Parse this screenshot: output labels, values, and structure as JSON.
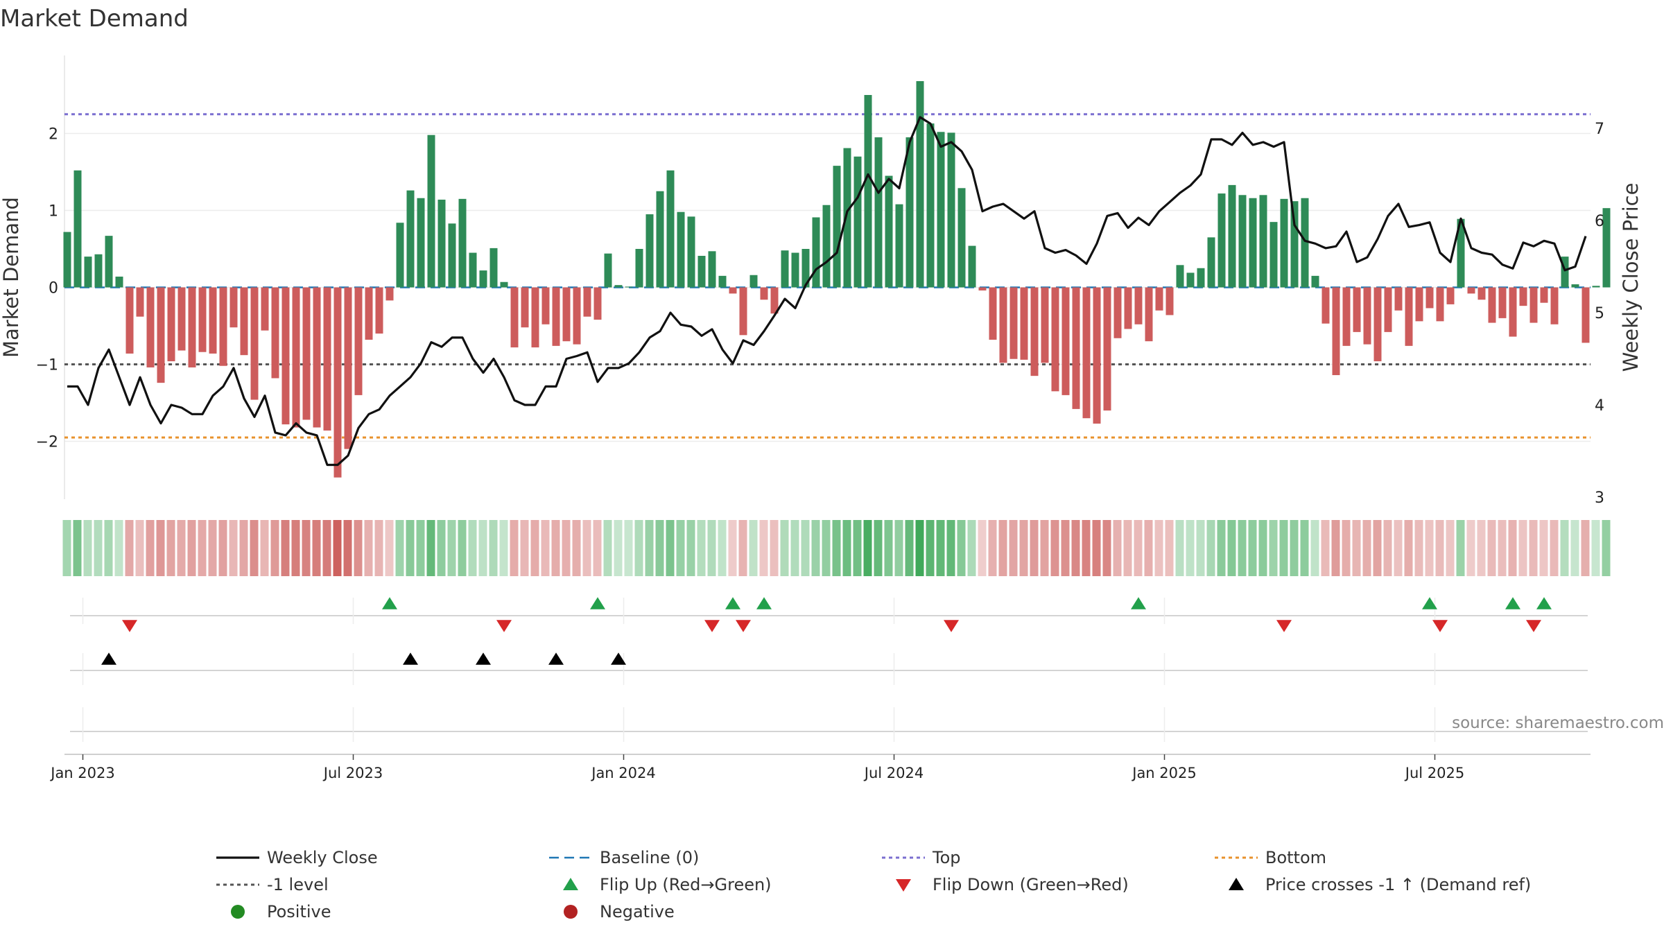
{
  "chart_data": {
    "type": "bar+line",
    "title": "Market Demand",
    "y_left_label": "Market Demand",
    "y_right_label": "Weekly Close Price",
    "y_left_range": [
      -2.7,
      3.0
    ],
    "y_right_range": [
      3.0,
      7.85
    ],
    "y_left_ticks": [
      -2,
      -1,
      0,
      1,
      2
    ],
    "y_right_ticks": [
      3,
      4,
      5,
      6,
      7
    ],
    "x_ticks": [
      {
        "label": "Jan 2023",
        "index": 1.5
      },
      {
        "label": "Jul 2023",
        "index": 27.5
      },
      {
        "label": "Jan 2024",
        "index": 53.5
      },
      {
        "label": "Jul 2024",
        "index": 79.5
      },
      {
        "label": "Jan 2025",
        "index": 105.5
      },
      {
        "label": "Jul 2025",
        "index": 131.5
      }
    ],
    "levels": {
      "top": 2.25,
      "minus_one": -1.0,
      "bottom": -1.95,
      "baseline": 0
    },
    "demand": [
      0.72,
      1.52,
      0.4,
      0.43,
      0.67,
      0.14,
      -0.86,
      -0.38,
      -1.04,
      -1.24,
      -0.96,
      -0.82,
      -1.04,
      -0.84,
      -0.86,
      -1.02,
      -0.52,
      -0.88,
      -1.46,
      -0.56,
      -1.18,
      -1.78,
      -1.82,
      -1.72,
      -1.82,
      -1.86,
      -2.47,
      -2.1,
      -1.4,
      -0.68,
      -0.6,
      -0.17,
      0.84,
      1.26,
      1.16,
      1.98,
      1.14,
      0.83,
      1.15,
      0.45,
      0.22,
      0.51,
      0.07,
      -0.78,
      -0.52,
      -0.78,
      -0.48,
      -0.76,
      -0.7,
      -0.74,
      -0.38,
      -0.42,
      0.44,
      0.03,
      0.01,
      0.5,
      0.95,
      1.25,
      1.52,
      0.98,
      0.92,
      0.41,
      0.47,
      0.15,
      -0.08,
      -0.62,
      0.16,
      -0.16,
      -0.34,
      0.48,
      0.45,
      0.5,
      0.91,
      1.07,
      1.58,
      1.81,
      1.7,
      2.5,
      1.95,
      1.45,
      1.08,
      1.95,
      2.68,
      2.13,
      2.02,
      2.01,
      1.29,
      0.54,
      -0.04,
      -0.68,
      -0.98,
      -0.93,
      -0.94,
      -1.15,
      -0.98,
      -1.35,
      -1.4,
      -1.58,
      -1.7,
      -1.77,
      -1.6,
      -0.66,
      -0.54,
      -0.48,
      -0.7,
      -0.3,
      -0.36,
      0.29,
      0.19,
      0.25,
      0.65,
      1.22,
      1.33,
      1.2,
      1.16,
      1.2,
      0.85,
      1.15,
      1.12,
      1.16,
      0.15,
      -0.47,
      -1.14,
      -0.76,
      -0.58,
      -0.74,
      -0.96,
      -0.58,
      -0.3,
      -0.76,
      -0.44,
      -0.27,
      -0.44,
      -0.22,
      0.89,
      -0.08,
      -0.16,
      -0.46,
      -0.4,
      -0.64,
      -0.24,
      -0.46,
      -0.2,
      -0.48,
      0.4,
      0.04,
      -0.72,
      0.02,
      1.03
    ],
    "close": [
      4.2,
      4.2,
      4.0,
      4.4,
      4.6,
      4.3,
      4.0,
      4.3,
      4.0,
      3.8,
      4.0,
      3.97,
      3.9,
      3.9,
      4.1,
      4.2,
      4.4,
      4.07,
      3.87,
      4.1,
      3.7,
      3.67,
      3.8,
      3.7,
      3.67,
      3.35,
      3.35,
      3.45,
      3.75,
      3.9,
      3.95,
      4.1,
      4.2,
      4.3,
      4.45,
      4.68,
      4.63,
      4.73,
      4.73,
      4.5,
      4.35,
      4.5,
      4.3,
      4.05,
      4.0,
      4.0,
      4.2,
      4.2,
      4.5,
      4.53,
      4.57,
      4.25,
      4.4,
      4.4,
      4.45,
      4.57,
      4.73,
      4.8,
      5.0,
      4.87,
      4.85,
      4.75,
      4.82,
      4.6,
      4.45,
      4.7,
      4.65,
      4.8,
      4.97,
      5.15,
      5.05,
      5.3,
      5.47,
      5.55,
      5.65,
      6.1,
      6.25,
      6.5,
      6.3,
      6.45,
      6.35,
      6.85,
      7.12,
      7.05,
      6.8,
      6.85,
      6.75,
      6.55,
      6.1,
      6.15,
      6.18,
      6.1,
      6.02,
      6.1,
      5.7,
      5.65,
      5.68,
      5.62,
      5.53,
      5.75,
      6.05,
      6.08,
      5.92,
      6.03,
      5.95,
      6.1,
      6.2,
      6.3,
      6.38,
      6.5,
      6.88,
      6.88,
      6.82,
      6.95,
      6.82,
      6.85,
      6.8,
      6.85,
      5.95,
      5.78,
      5.75,
      5.7,
      5.72,
      5.88,
      5.55,
      5.6,
      5.8,
      6.05,
      6.18,
      5.93,
      5.95,
      5.98,
      5.65,
      5.55,
      6.02,
      5.7,
      5.65,
      5.63,
      5.52,
      5.48,
      5.76,
      5.72,
      5.78,
      5.75,
      5.46,
      5.5,
      5.83
    ],
    "flip_up_indices": [
      31,
      51,
      64,
      67,
      103,
      131,
      139,
      142
    ],
    "flip_down_indices": [
      6,
      42,
      62,
      65,
      85,
      117,
      132,
      141
    ],
    "price_cross_indices": [
      4,
      33,
      40,
      47,
      53
    ],
    "source": "source: sharemaestro.com",
    "legend": [
      {
        "label": "Weekly Close",
        "style": "line-black"
      },
      {
        "label": "Baseline (0)",
        "style": "dash-blue"
      },
      {
        "label": "Top",
        "style": "dot-purple"
      },
      {
        "label": "Bottom",
        "style": "dot-orange"
      },
      {
        "label": "-1 level",
        "style": "dot-gray"
      },
      {
        "label": "Flip Up (Red→Green)",
        "style": "tri-up-green"
      },
      {
        "label": "Flip Down (Green→Red)",
        "style": "tri-down-red"
      },
      {
        "label": "Price crosses -1 ↑ (Demand ref)",
        "style": "tri-up-black"
      },
      {
        "label": "Positive",
        "style": "dot-green"
      },
      {
        "label": "Negative",
        "style": "dot-red"
      }
    ],
    "colors": {
      "positive": "#2e8b57",
      "negative": "#cd5c5c",
      "close_line": "#111111",
      "baseline": "#1f77b4",
      "top": "#7b6fd0",
      "bottom": "#e8922c",
      "minus_one": "#555555",
      "flip_up": "#22a04b",
      "flip_down": "#d62728",
      "price_cross": "#000000",
      "legend_positive": "#238b23",
      "legend_negative": "#b22222"
    }
  }
}
